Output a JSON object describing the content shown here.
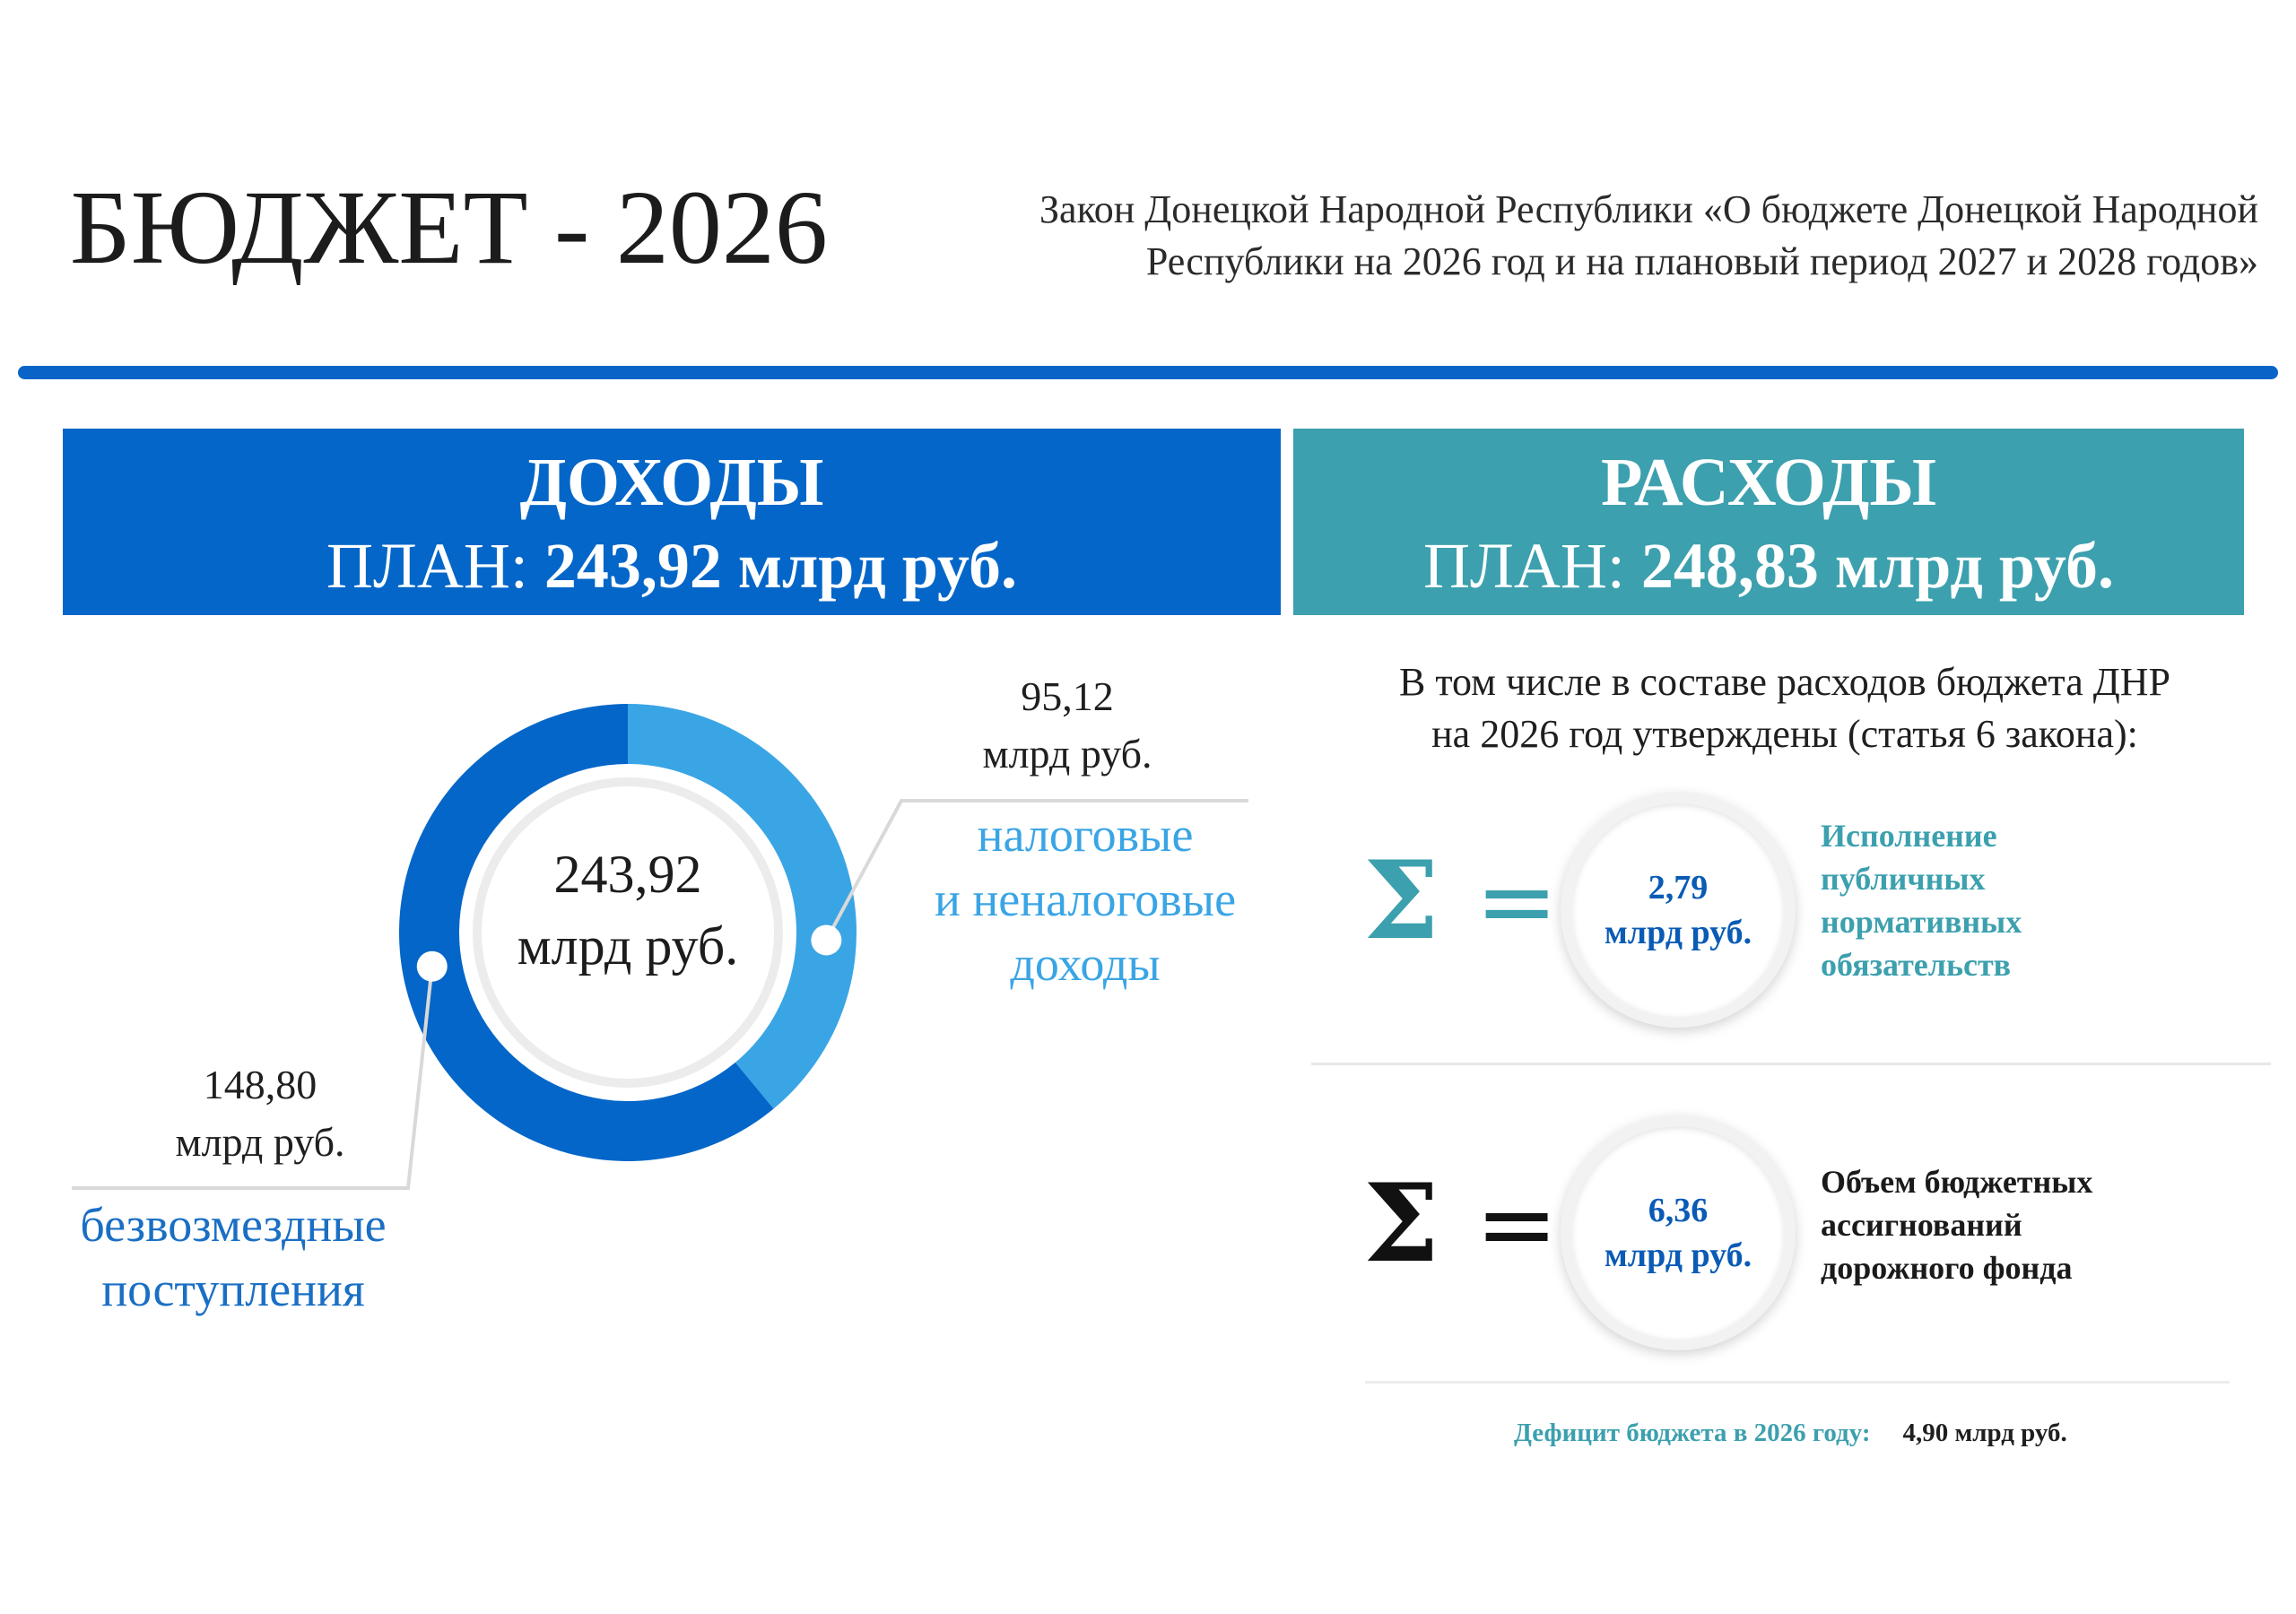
{
  "header": {
    "title": "БЮДЖЕТ - 2026",
    "law_line1": "Закон Донецкой Народной Республики «О бюджете Донецкой Народной",
    "law_line2": "Республики на 2026 год и на плановый период 2027 и 2028 годов»"
  },
  "income": {
    "title": "ДОХОДЫ",
    "plan_label": "ПЛАН: ",
    "plan_value": "243,92 млрд руб."
  },
  "expense": {
    "title": "РАСХОДЫ",
    "plan_label": "ПЛАН: ",
    "plan_value": "248,83 млрд руб.",
    "intro_line1": "В том числе в составе расходов бюджета ДНР",
    "intro_line2": "на 2026 год утверждены (статья 6 закона):"
  },
  "chart_data": {
    "type": "pie",
    "variant": "donut",
    "total": 243.92,
    "center_value": "243,92",
    "center_unit": "млрд руб.",
    "unit": "млрд руб.",
    "slices": [
      {
        "name_line1": "налоговые",
        "name_line2": "и неналоговые",
        "name_line3": "доходы",
        "value": 95.12,
        "value_label": "95,12",
        "color": "#3aa5e5"
      },
      {
        "name_line1": "безвозмездные",
        "name_line2": "поступления",
        "value": 148.8,
        "value_label": "148,80",
        "color": "#0466c8"
      }
    ]
  },
  "items": [
    {
      "sigma": "Σ",
      "equals": "=",
      "value": "2,79",
      "unit": "млрд руб.",
      "desc_line1": "Исполнение",
      "desc_line2": "публичных",
      "desc_line3": "нормативных",
      "desc_line4": "обязательств",
      "color": "#3ca0ae"
    },
    {
      "sigma": "Σ",
      "equals": "=",
      "value": "6,36",
      "unit": "млрд руб.",
      "desc_line1": "Объем бюджетных",
      "desc_line2": "ассигнований",
      "desc_line3": "дорожного фонда",
      "color": "#111111"
    }
  ],
  "deficit": {
    "label": "Дефицит бюджета в 2026 году:",
    "value": "4,90  млрд руб."
  },
  "colors": {
    "income_header": "#0466c8",
    "expense_header": "#3ca0ae",
    "rule": "#0a64c8",
    "value_blue": "#0a5bb5"
  }
}
